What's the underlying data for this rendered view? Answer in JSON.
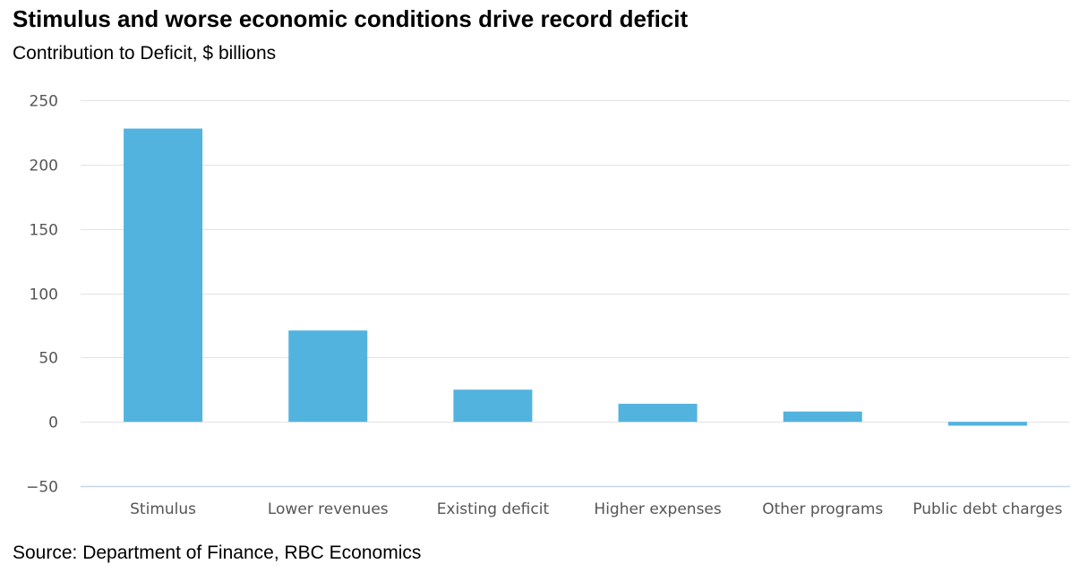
{
  "title": "Stimulus and worse economic conditions drive record deficit",
  "subtitle": "Contribution to Deficit, $ billions",
  "source": "Source: Department of Finance, RBC Economics",
  "colors": {
    "bar": "#52b3df",
    "grid": "#e3e3e3",
    "axis": "#c8d6e6",
    "tick_text": "#555555"
  },
  "chart_data": {
    "type": "bar",
    "categories": [
      "Stimulus",
      "Lower revenues",
      "Existing deficit",
      "Higher expenses",
      "Other programs",
      "Public debt charges"
    ],
    "values": [
      228,
      71,
      25,
      14,
      8,
      -3
    ],
    "ylim": [
      -50,
      250
    ],
    "yticks": [
      250,
      200,
      150,
      100,
      50,
      0,
      -50
    ],
    "ytick_labels": [
      "250",
      "200",
      "150",
      "100",
      "50",
      "0",
      "−50"
    ],
    "grid": true,
    "legend": "none"
  }
}
